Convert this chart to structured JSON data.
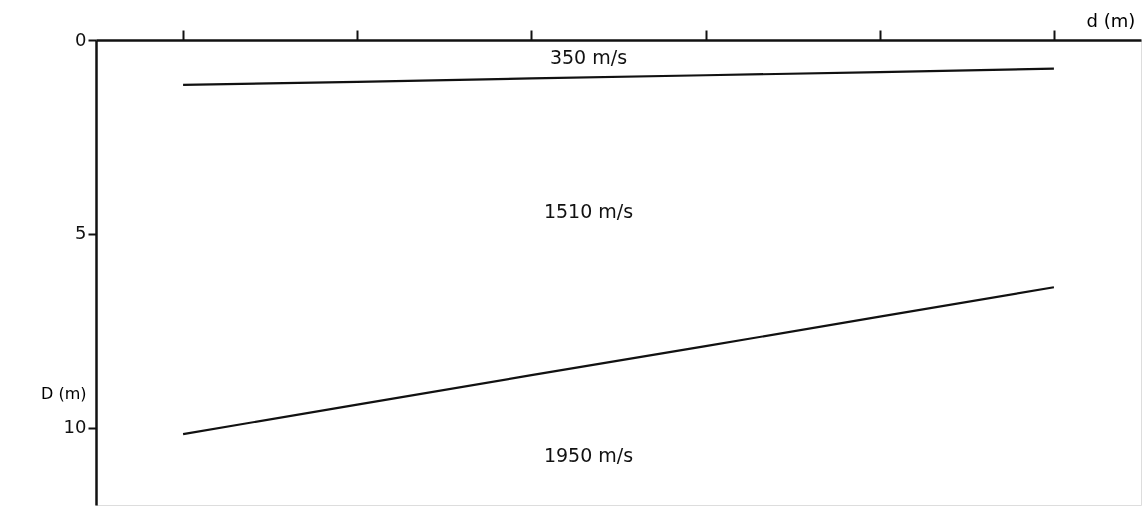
{
  "chart_data": {
    "type": "line",
    "xlabel": "d (m)",
    "ylabel": "D (m)",
    "categories": [
      null,
      null,
      null,
      null,
      null,
      null
    ],
    "series": [
      {
        "color": "#111111",
        "values": [
          10.17,
          9.41,
          8.65,
          7.9,
          7.14,
          6.38
        ]
      },
      {
        "color": "#111111",
        "values": [
          1.16,
          1.08,
          0.99,
          0.91,
          0.83,
          0.74
        ]
      }
    ],
    "ylim": [
      12,
      0
    ],
    "yticks": [
      0,
      5,
      10
    ],
    "grid": false,
    "legend": false,
    "marker": "none",
    "line_style": "solid",
    "annotations": [
      "350 m/s",
      "1510 m/s",
      "1950 m/s"
    ]
  }
}
